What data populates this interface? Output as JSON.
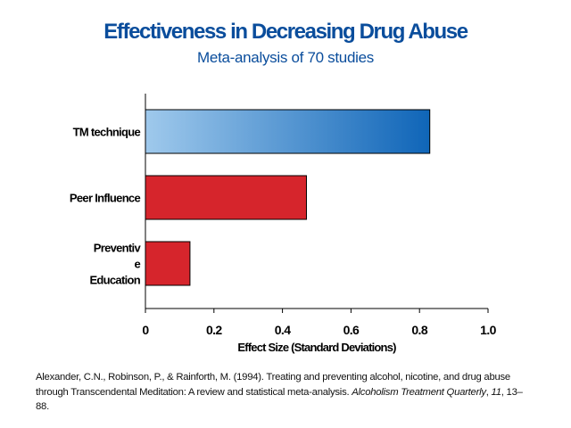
{
  "colors": {
    "title": "#0a4d9c",
    "subtitle": "#0a4d9c",
    "tm_gradient_start": "#9fc9ec",
    "tm_gradient_end": "#0f65b8",
    "other_bars": "#d6252c",
    "axis": "#000000"
  },
  "chart_data": {
    "type": "bar",
    "orientation": "horizontal",
    "title": "Effectiveness in Decreasing Drug Abuse",
    "subtitle": "Meta-analysis of 70 studies",
    "categories": [
      {
        "label_lines": [
          "TM technique"
        ]
      },
      {
        "label_lines": [
          "Peer Influence"
        ]
      },
      {
        "label_lines": [
          "Preventiv",
          "e",
          "Education"
        ]
      }
    ],
    "values": [
      0.83,
      0.47,
      0.13
    ],
    "xlabel": "Effect Size (Standard Deviations)",
    "xlim": [
      0,
      1.0
    ],
    "xticks": [
      "0",
      "0.2",
      "0.4",
      "0.6",
      "0.8",
      "1.0"
    ],
    "grid": false,
    "legend": "none"
  },
  "citation": {
    "text": "Alexander, C.N., Robinson, P., & Rainforth, M. (1994). Treating and preventing alcohol, nicotine, and drug abuse through Transcendental Meditation: A review and statistical meta-analysis. ",
    "journal": "Alcoholism Treatment Quarterly",
    "sep1": ", ",
    "volume": "11",
    "pages": ", 13–88."
  }
}
